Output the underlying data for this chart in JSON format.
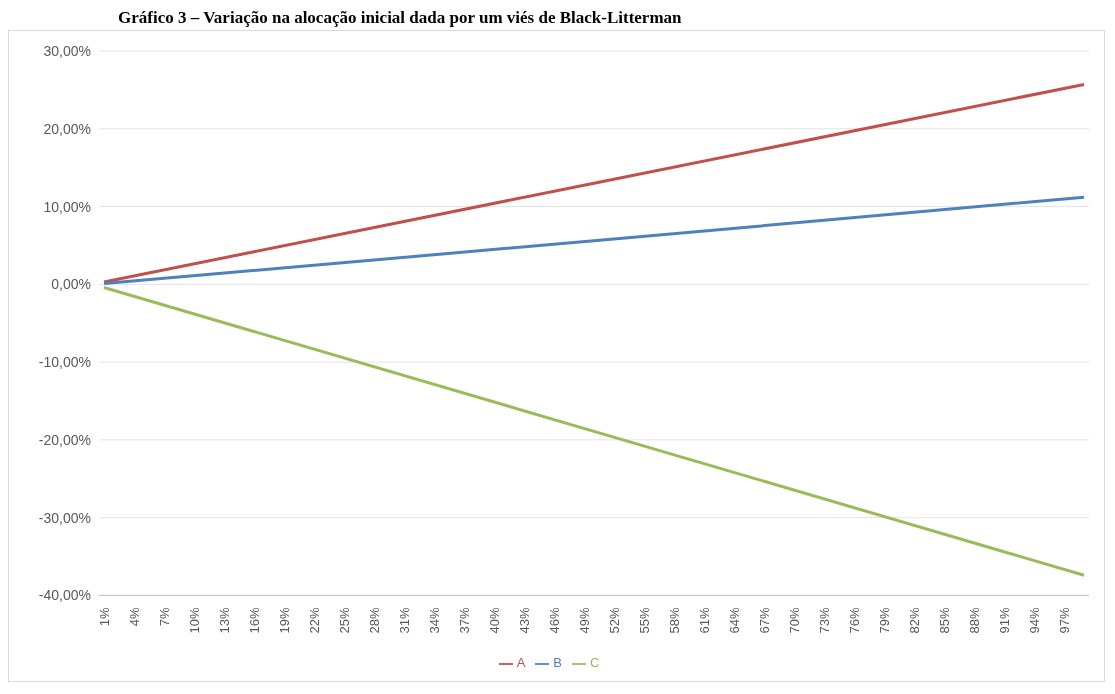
{
  "chart_data": {
    "type": "line",
    "title": "Gráfico 3 – Variação na alocação inicial dada por um viés de Black-Litterman",
    "xlim": [
      0.5,
      99.5
    ],
    "xticks": [
      {
        "value": 1,
        "label": "1%"
      },
      {
        "value": 4,
        "label": "4%"
      },
      {
        "value": 7,
        "label": "7%"
      },
      {
        "value": 10,
        "label": "10%"
      },
      {
        "value": 13,
        "label": "13%"
      },
      {
        "value": 16,
        "label": "16%"
      },
      {
        "value": 19,
        "label": "19%"
      },
      {
        "value": 22,
        "label": "22%"
      },
      {
        "value": 25,
        "label": "25%"
      },
      {
        "value": 28,
        "label": "28%"
      },
      {
        "value": 31,
        "label": "31%"
      },
      {
        "value": 34,
        "label": "34%"
      },
      {
        "value": 37,
        "label": "37%"
      },
      {
        "value": 40,
        "label": "40%"
      },
      {
        "value": 43,
        "label": "43%"
      },
      {
        "value": 46,
        "label": "46%"
      },
      {
        "value": 49,
        "label": "49%"
      },
      {
        "value": 52,
        "label": "52%"
      },
      {
        "value": 55,
        "label": "55%"
      },
      {
        "value": 58,
        "label": "58%"
      },
      {
        "value": 61,
        "label": "61%"
      },
      {
        "value": 64,
        "label": "64%"
      },
      {
        "value": 67,
        "label": "67%"
      },
      {
        "value": 70,
        "label": "70%"
      },
      {
        "value": 73,
        "label": "73%"
      },
      {
        "value": 76,
        "label": "76%"
      },
      {
        "value": 79,
        "label": "79%"
      },
      {
        "value": 82,
        "label": "82%"
      },
      {
        "value": 85,
        "label": "85%"
      },
      {
        "value": 88,
        "label": "88%"
      },
      {
        "value": 91,
        "label": "91%"
      },
      {
        "value": 94,
        "label": "94%"
      },
      {
        "value": 97,
        "label": "97%"
      }
    ],
    "ylim": [
      -40,
      30
    ],
    "yticks": [
      {
        "value": -40,
        "label": "-40,00%"
      },
      {
        "value": -30,
        "label": "-30,00%"
      },
      {
        "value": -20,
        "label": "-20,00%"
      },
      {
        "value": -10,
        "label": "-10,00%"
      },
      {
        "value": 0,
        "label": "0,00%"
      },
      {
        "value": 10,
        "label": "10,00%"
      },
      {
        "value": 20,
        "label": "20,00%"
      },
      {
        "value": 30,
        "label": "30,00%"
      }
    ],
    "grid": "y",
    "legend": "bottom",
    "series": [
      {
        "name": "A",
        "color": "#c0504d",
        "x": [
          1,
          50,
          99
        ],
        "values": [
          0.3,
          13,
          25.7
        ]
      },
      {
        "name": "B",
        "color": "#4f81bd",
        "x": [
          1,
          50,
          99
        ],
        "values": [
          0.1,
          5.6,
          11.2
        ]
      },
      {
        "name": "C",
        "color": "#9bbb59",
        "x": [
          1,
          50,
          99
        ],
        "values": [
          -0.4,
          -18.9,
          -37.4
        ]
      }
    ]
  }
}
